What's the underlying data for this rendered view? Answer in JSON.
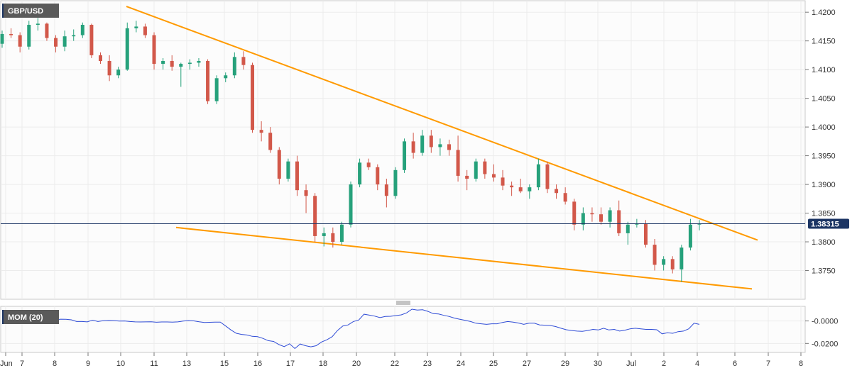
{
  "instrument": "GBP/USD",
  "indicator_label": "MOM (20)",
  "colors": {
    "up": "#26a17b",
    "down": "#d2584a",
    "trendline": "#ff9a00",
    "price_line": "#1c3564",
    "momentum": "#2f4cd6",
    "badge_bg": "#5a5a5a",
    "grid": "#ececec",
    "panel_bg": "#fcfcfc",
    "border": "#c9c9c9"
  },
  "chart_data": [
    {
      "type": "candlestick",
      "series": [
        {
          "name": "GBP/USD"
        }
      ],
      "y_ticks": [
        "1.4200",
        "1.4150",
        "1.4100",
        "1.4050",
        "1.4000",
        "1.3950",
        "1.3900",
        "1.3850",
        "1.3800",
        "1.3750"
      ],
      "ylim": [
        1.37,
        1.422
      ],
      "last_price": "1.38315",
      "x_tick_labels": [
        "Jun",
        "7",
        "8",
        "9",
        "10",
        "11",
        "13",
        "15",
        "16",
        "17",
        "18",
        "20",
        "22",
        "23",
        "24",
        "25",
        "27",
        "29",
        "30",
        "Jul",
        "2",
        "4",
        "6",
        "7",
        "8"
      ],
      "trendlines": [
        {
          "name": "upper",
          "from": [
            0,
            1.421
          ],
          "to": [
            37,
            1.3803
          ]
        },
        {
          "name": "lower",
          "from": [
            9,
            1.3825
          ],
          "to": [
            36,
            1.3718
          ]
        }
      ],
      "candles": [
        [
          1.4145,
          1.4168,
          1.4138,
          1.4162
        ],
        [
          1.4162,
          1.4172,
          1.4155,
          1.416
        ],
        [
          1.416,
          1.4165,
          1.413,
          1.414
        ],
        [
          1.414,
          1.4185,
          1.4135,
          1.4178
        ],
        [
          1.4178,
          1.419,
          1.4168,
          1.418
        ],
        [
          1.418,
          1.4182,
          1.415,
          1.4155
        ],
        [
          1.4155,
          1.416,
          1.413,
          1.414
        ],
        [
          1.414,
          1.4168,
          1.4132,
          1.4158
        ],
        [
          1.4158,
          1.417,
          1.415,
          1.416
        ],
        [
          1.416,
          1.4182,
          1.4155,
          1.4178
        ],
        [
          1.4178,
          1.418,
          1.412,
          1.4125
        ],
        [
          1.4125,
          1.413,
          1.411,
          1.4115
        ],
        [
          1.4115,
          1.4125,
          1.408,
          1.409
        ],
        [
          1.409,
          1.4105,
          1.4085,
          1.41
        ],
        [
          1.41,
          1.4182,
          1.4098,
          1.4172
        ],
        [
          1.4172,
          1.4185,
          1.4165,
          1.4175
        ],
        [
          1.4175,
          1.418,
          1.4155,
          1.416
        ],
        [
          1.416,
          1.4165,
          1.41,
          1.411
        ],
        [
          1.411,
          1.412,
          1.41,
          1.4115
        ],
        [
          1.4115,
          1.4125,
          1.4098,
          1.4105
        ],
        [
          1.4105,
          1.4112,
          1.407,
          1.411
        ],
        [
          1.411,
          1.4118,
          1.41,
          1.4112
        ],
        [
          1.4112,
          1.412,
          1.4105,
          1.4115
        ],
        [
          1.4115,
          1.4118,
          1.404,
          1.4045
        ],
        [
          1.4045,
          1.409,
          1.404,
          1.4085
        ],
        [
          1.4085,
          1.4095,
          1.4078,
          1.409
        ],
        [
          1.409,
          1.413,
          1.4085,
          1.4122
        ],
        [
          1.4122,
          1.4132,
          1.41,
          1.4108
        ],
        [
          1.4108,
          1.4112,
          1.399,
          1.3995
        ],
        [
          1.3995,
          1.401,
          1.3975,
          1.399
        ],
        [
          1.399,
          1.4,
          1.3955,
          1.396
        ],
        [
          1.396,
          1.3965,
          1.39,
          1.391
        ],
        [
          1.391,
          1.3945,
          1.3905,
          1.394
        ],
        [
          1.394,
          1.395,
          1.388,
          1.389
        ],
        [
          1.389,
          1.39,
          1.385,
          1.388
        ],
        [
          1.388,
          1.3885,
          1.38,
          1.381
        ],
        [
          1.381,
          1.3825,
          1.3792,
          1.3815
        ],
        [
          1.3815,
          1.3825,
          1.379,
          1.38
        ],
        [
          1.38,
          1.3835,
          1.3795,
          1.383
        ],
        [
          1.383,
          1.3905,
          1.3825,
          1.39
        ],
        [
          1.39,
          1.3945,
          1.3895,
          1.3938
        ],
        [
          1.3938,
          1.3945,
          1.3925,
          1.393
        ],
        [
          1.393,
          1.3935,
          1.389,
          1.39
        ],
        [
          1.39,
          1.391,
          1.386,
          1.388
        ],
        [
          1.388,
          1.393,
          1.3875,
          1.3925
        ],
        [
          1.3925,
          1.398,
          1.392,
          1.3975
        ],
        [
          1.3975,
          1.399,
          1.3945,
          1.3955
        ],
        [
          1.3955,
          1.3995,
          1.395,
          1.3985
        ],
        [
          1.3985,
          1.3995,
          1.3955,
          1.3965
        ],
        [
          1.3965,
          1.398,
          1.395,
          1.397
        ],
        [
          1.397,
          1.3978,
          1.395,
          1.396
        ],
        [
          1.396,
          1.3985,
          1.3905,
          1.3915
        ],
        [
          1.3915,
          1.3925,
          1.389,
          1.391
        ],
        [
          1.391,
          1.3945,
          1.3905,
          1.394
        ],
        [
          1.394,
          1.3945,
          1.391,
          1.3918
        ],
        [
          1.3918,
          1.3935,
          1.3905,
          1.3912
        ],
        [
          1.3912,
          1.3925,
          1.389,
          1.3898
        ],
        [
          1.3898,
          1.3905,
          1.388,
          1.3895
        ],
        [
          1.3895,
          1.391,
          1.3885,
          1.3888
        ],
        [
          1.3888,
          1.39,
          1.3875,
          1.3895
        ],
        [
          1.3895,
          1.3945,
          1.389,
          1.3935
        ],
        [
          1.3935,
          1.394,
          1.3885,
          1.3892
        ],
        [
          1.3892,
          1.39,
          1.3875,
          1.3885
        ],
        [
          1.3885,
          1.3895,
          1.3865,
          1.387
        ],
        [
          1.387,
          1.3875,
          1.382,
          1.383
        ],
        [
          1.383,
          1.386,
          1.382,
          1.385
        ],
        [
          1.385,
          1.386,
          1.3835,
          1.3848
        ],
        [
          1.3848,
          1.386,
          1.383,
          1.3835
        ],
        [
          1.3835,
          1.386,
          1.3825,
          1.3855
        ],
        [
          1.3855,
          1.3872,
          1.381,
          1.3815
        ],
        [
          1.3815,
          1.3835,
          1.3795,
          1.383
        ],
        [
          1.383,
          1.384,
          1.3825,
          1.3832
        ],
        [
          1.3832,
          1.3838,
          1.379,
          1.3795
        ],
        [
          1.3795,
          1.3805,
          1.375,
          1.376
        ],
        [
          1.376,
          1.3775,
          1.375,
          1.377
        ],
        [
          1.377,
          1.3775,
          1.3745,
          1.3752
        ],
        [
          1.3752,
          1.3795,
          1.373,
          1.379
        ],
        [
          1.379,
          1.384,
          1.3785,
          1.383
        ],
        [
          1.383,
          1.3838,
          1.382,
          1.3832
        ]
      ]
    },
    {
      "type": "line",
      "series": [
        {
          "name": "MOM (20)"
        }
      ],
      "y_ticks": [
        "-0.0000",
        "-0.0200"
      ],
      "ylim": [
        -0.028,
        0.013
      ],
      "values": [
        -0.0,
        -0.0003,
        0.0,
        0.0005,
        0.0002,
        -0.0002,
        0.0002,
        -0.0004,
        0.0008,
        0.0001,
        0.001,
        0.0016,
        0.0015,
        0.001,
        -0.0005,
        -0.0005,
        -0.0008,
        0.0007,
        -0.0005,
        0.0002,
        0.0004,
        0.0003,
        -0.0001,
        0.0,
        -0.0005,
        -0.0008,
        -0.0009,
        -0.0008,
        -0.0007,
        -0.0011,
        -0.0009,
        -0.0009,
        -0.001,
        -0.0008,
        -0.0001,
        0.0003,
        0.0001,
        -0.0007,
        -0.0013,
        -0.0012,
        -0.001,
        -0.001,
        -0.0045,
        -0.008,
        -0.011,
        -0.012,
        -0.0125,
        -0.0137,
        -0.014,
        -0.0155,
        -0.0175,
        -0.0182,
        -0.021,
        -0.0228,
        -0.0203,
        -0.0245,
        -0.0205,
        -0.022,
        -0.023,
        -0.022,
        -0.0187,
        -0.0168,
        -0.014,
        -0.0085,
        -0.0045,
        -0.0035,
        -0.0005,
        0.0008,
        0.006,
        0.0052,
        0.0043,
        0.003,
        0.004,
        0.0042,
        0.0048,
        0.0054,
        0.0072,
        0.0105,
        0.0097,
        0.01,
        0.0085,
        0.0065,
        0.0062,
        0.005,
        0.004,
        0.0025,
        0.0015,
        0.0005,
        -0.0005,
        -0.002,
        -0.0025,
        -0.003,
        -0.0025,
        -0.0025,
        -0.0013,
        -0.0005,
        -0.001,
        -0.0018,
        -0.003,
        -0.002,
        -0.002,
        -0.0035,
        -0.0038,
        -0.004,
        -0.005,
        -0.0065,
        -0.0078,
        -0.0085,
        -0.009,
        -0.0092,
        -0.0085,
        -0.0075,
        -0.008,
        -0.0065,
        -0.008,
        -0.0075,
        -0.009,
        -0.0082,
        -0.007,
        -0.0065,
        -0.007,
        -0.0075,
        -0.0075,
        -0.0078,
        -0.0115,
        -0.0105,
        -0.011,
        -0.0095,
        -0.009,
        -0.007,
        -0.002,
        -0.003
      ]
    }
  ]
}
